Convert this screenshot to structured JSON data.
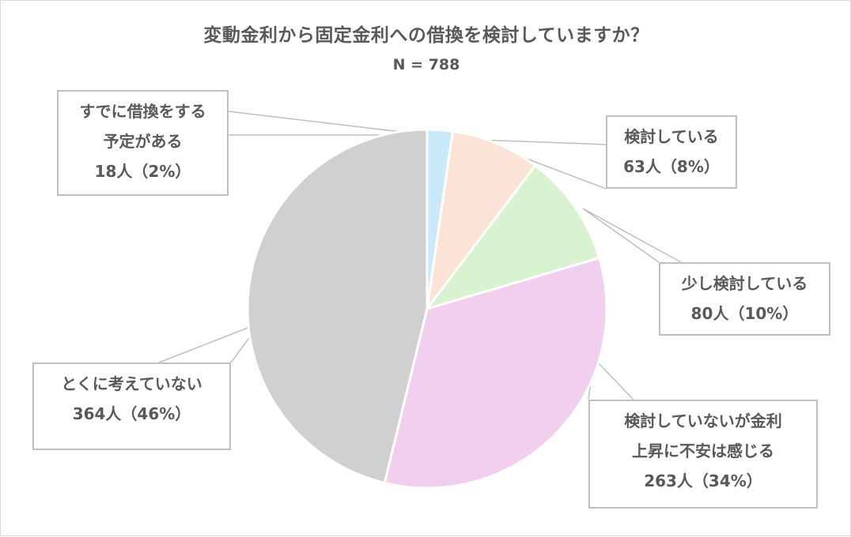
{
  "chart_data": {
    "type": "pie",
    "title": "変動金利から固定金利への借換を検討していますか？",
    "subtitle": "N = 788",
    "slices": [
      {
        "label_lines": [
          "すでに借換をする",
          "予定がある"
        ],
        "value_text": "18人（2%）",
        "count": 18,
        "percent": 2,
        "color": "#c9ebf9"
      },
      {
        "label_lines": [
          "検討している"
        ],
        "value_text": "63人（8%）",
        "count": 63,
        "percent": 8,
        "color": "#fbe3d6"
      },
      {
        "label_lines": [
          "少し検討している"
        ],
        "value_text": "80人（10%）",
        "count": 80,
        "percent": 10,
        "color": "#d9f2d0"
      },
      {
        "label_lines": [
          "検討していないが金利",
          "上昇に不安は感じる"
        ],
        "value_text": "263人（34%）",
        "count": 263,
        "percent": 34,
        "color": "#f2ceef"
      },
      {
        "label_lines": [
          "とくに考えていない"
        ],
        "value_text": "364人（46%）",
        "count": 364,
        "percent": 46,
        "color": "#d0d0d0"
      }
    ]
  }
}
